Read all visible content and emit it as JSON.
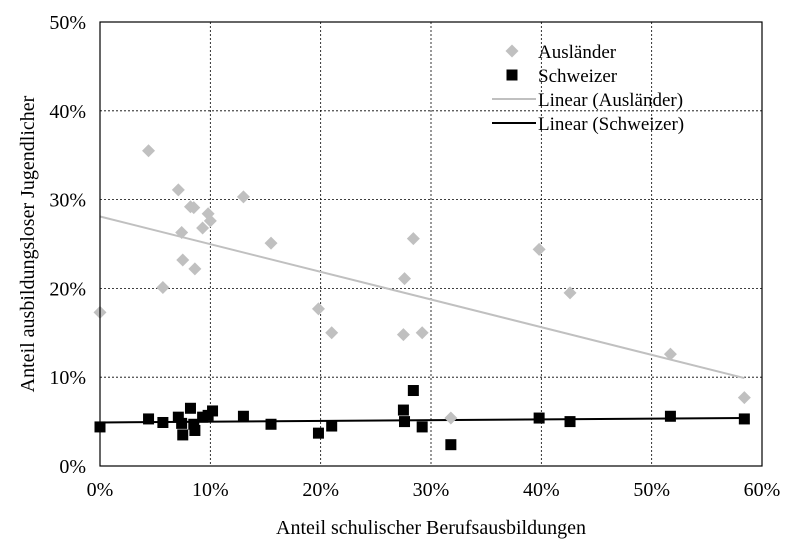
{
  "chart_data": {
    "type": "scatter",
    "title": "",
    "xlabel": "Anteil schulischer Berufsausbildungen",
    "ylabel": "Anteil ausbildungsloser Jugendlicher",
    "xlim": [
      0,
      0.6
    ],
    "ylim": [
      0,
      0.5
    ],
    "x_ticks": [
      0,
      0.1,
      0.2,
      0.3,
      0.4,
      0.5,
      0.6
    ],
    "y_ticks": [
      0,
      0.1,
      0.2,
      0.3,
      0.4,
      0.5
    ],
    "x_tick_labels": [
      "0%",
      "10%",
      "20%",
      "30%",
      "40%",
      "50%",
      "60%"
    ],
    "y_tick_labels": [
      "0%",
      "10%",
      "20%",
      "30%",
      "40%",
      "50%"
    ],
    "grid": true,
    "legend_position": "top-right",
    "series": [
      {
        "name": "Ausländer",
        "marker": "diamond",
        "color": "#c0c0c0",
        "points": [
          {
            "x": 0.0,
            "y": 0.173
          },
          {
            "x": 0.044,
            "y": 0.355
          },
          {
            "x": 0.057,
            "y": 0.201
          },
          {
            "x": 0.071,
            "y": 0.311
          },
          {
            "x": 0.074,
            "y": 0.263
          },
          {
            "x": 0.075,
            "y": 0.232
          },
          {
            "x": 0.082,
            "y": 0.292
          },
          {
            "x": 0.085,
            "y": 0.291
          },
          {
            "x": 0.086,
            "y": 0.222
          },
          {
            "x": 0.093,
            "y": 0.268
          },
          {
            "x": 0.098,
            "y": 0.284
          },
          {
            "x": 0.1,
            "y": 0.276
          },
          {
            "x": 0.13,
            "y": 0.303
          },
          {
            "x": 0.155,
            "y": 0.251
          },
          {
            "x": 0.198,
            "y": 0.177
          },
          {
            "x": 0.21,
            "y": 0.15
          },
          {
            "x": 0.275,
            "y": 0.148
          },
          {
            "x": 0.276,
            "y": 0.211
          },
          {
            "x": 0.284,
            "y": 0.256
          },
          {
            "x": 0.292,
            "y": 0.15
          },
          {
            "x": 0.318,
            "y": 0.054
          },
          {
            "x": 0.398,
            "y": 0.244
          },
          {
            "x": 0.426,
            "y": 0.195
          },
          {
            "x": 0.517,
            "y": 0.126
          },
          {
            "x": 0.584,
            "y": 0.077
          }
        ]
      },
      {
        "name": "Schweizer",
        "marker": "square",
        "color": "#000000",
        "points": [
          {
            "x": 0.0,
            "y": 0.044
          },
          {
            "x": 0.044,
            "y": 0.053
          },
          {
            "x": 0.057,
            "y": 0.049
          },
          {
            "x": 0.071,
            "y": 0.055
          },
          {
            "x": 0.074,
            "y": 0.048
          },
          {
            "x": 0.075,
            "y": 0.035
          },
          {
            "x": 0.082,
            "y": 0.065
          },
          {
            "x": 0.085,
            "y": 0.047
          },
          {
            "x": 0.086,
            "y": 0.04
          },
          {
            "x": 0.093,
            "y": 0.055
          },
          {
            "x": 0.098,
            "y": 0.057
          },
          {
            "x": 0.102,
            "y": 0.062
          },
          {
            "x": 0.13,
            "y": 0.056
          },
          {
            "x": 0.155,
            "y": 0.047
          },
          {
            "x": 0.198,
            "y": 0.037
          },
          {
            "x": 0.21,
            "y": 0.045
          },
          {
            "x": 0.275,
            "y": 0.063
          },
          {
            "x": 0.276,
            "y": 0.05
          },
          {
            "x": 0.284,
            "y": 0.085
          },
          {
            "x": 0.292,
            "y": 0.044
          },
          {
            "x": 0.318,
            "y": 0.024
          },
          {
            "x": 0.398,
            "y": 0.054
          },
          {
            "x": 0.426,
            "y": 0.05
          },
          {
            "x": 0.517,
            "y": 0.056
          },
          {
            "x": 0.584,
            "y": 0.053
          }
        ]
      }
    ],
    "trendlines": [
      {
        "name": "Linear (Ausländer)",
        "color": "#c0c0c0",
        "x": [
          0,
          0.584
        ],
        "y": [
          0.281,
          0.099
        ]
      },
      {
        "name": "Linear (Schweizer)",
        "color": "#000000",
        "x": [
          0,
          0.584
        ],
        "y": [
          0.049,
          0.054
        ]
      }
    ]
  }
}
